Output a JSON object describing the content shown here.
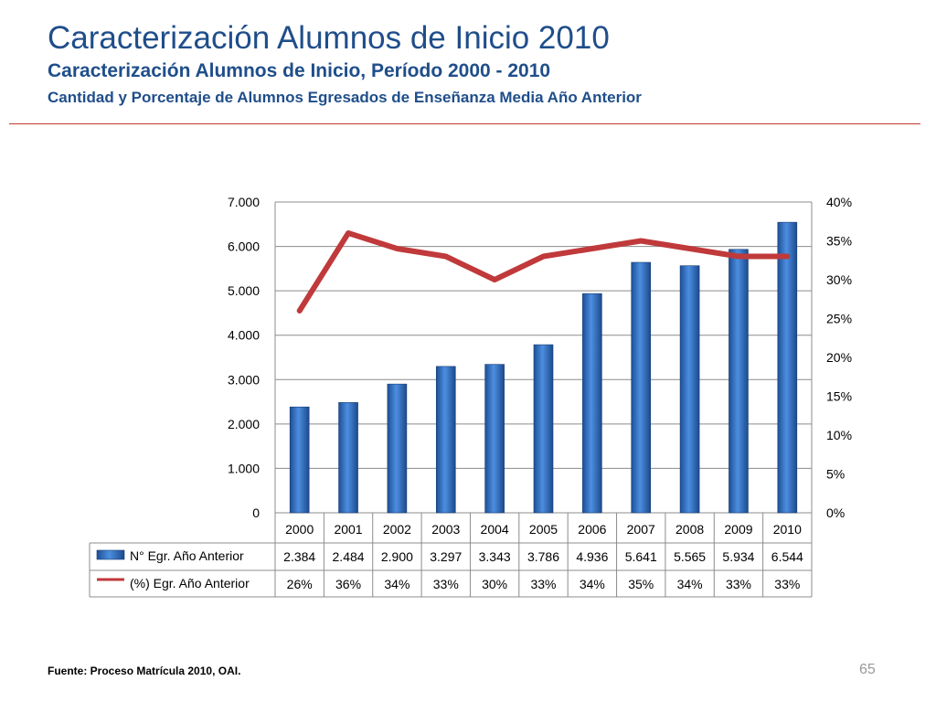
{
  "slide": {
    "title": "Caracterización Alumnos de Inicio 2010",
    "subtitle": "Caracterización Alumnos de Inicio, Período 2000 - 2010",
    "subtitle2": "Cantidad y Porcentaje de Alumnos Egresados de Enseñanza Media Año Anterior",
    "source": "Fuente: Proceso Matrícula 2010, OAI.",
    "page_number": "65"
  },
  "colors": {
    "title": "#1f4e8a",
    "bar": "#2e6fc4",
    "line": "#c0393b",
    "rule": "#c0392b"
  },
  "chart_data": {
    "type": "bar",
    "categories": [
      "2000",
      "2001",
      "2002",
      "2003",
      "2004",
      "2005",
      "2006",
      "2007",
      "2008",
      "2009",
      "2010"
    ],
    "series": [
      {
        "name": "N° Egr. Año Anterior",
        "type": "bar",
        "axis": "left",
        "values": [
          2384,
          2484,
          2900,
          3297,
          3343,
          3786,
          4936,
          5641,
          5565,
          5934,
          6544
        ],
        "labels": [
          "2.384",
          "2.484",
          "2.900",
          "3.297",
          "3.343",
          "3.786",
          "4.936",
          "5.641",
          "5.565",
          "5.934",
          "6.544"
        ]
      },
      {
        "name": "(%) Egr. Año Anterior",
        "type": "line",
        "axis": "right",
        "values": [
          26,
          36,
          34,
          33,
          30,
          33,
          34,
          35,
          34,
          33,
          33
        ],
        "labels": [
          "26%",
          "36%",
          "34%",
          "33%",
          "30%",
          "33%",
          "34%",
          "35%",
          "34%",
          "33%",
          "33%"
        ]
      }
    ],
    "y_left": {
      "ylim": [
        0,
        7000
      ],
      "ticks": [
        0,
        1000,
        2000,
        3000,
        4000,
        5000,
        6000,
        7000
      ],
      "tick_labels": [
        "0",
        "1.000",
        "2.000",
        "3.000",
        "4.000",
        "5.000",
        "6.000",
        "7.000"
      ]
    },
    "y_right": {
      "ylim": [
        0,
        40
      ],
      "ticks": [
        0,
        5,
        10,
        15,
        20,
        25,
        30,
        35,
        40
      ],
      "tick_labels": [
        "0%",
        "5%",
        "10%",
        "15%",
        "20%",
        "25%",
        "30%",
        "35%",
        "40%"
      ]
    },
    "grid": true,
    "legend": "data-table-below"
  }
}
